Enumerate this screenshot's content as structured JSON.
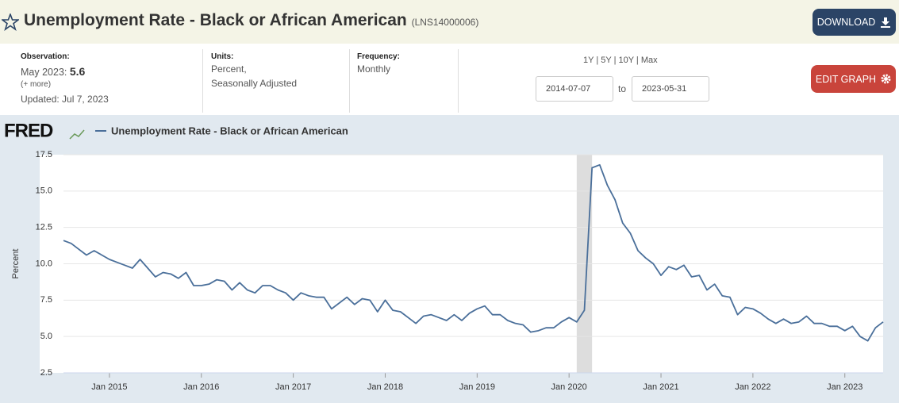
{
  "header": {
    "title": "Unemployment Rate - Black or African American",
    "series_id": "(LNS14000006)",
    "download": "DOWNLOAD"
  },
  "info": {
    "observation_label": "Observation:",
    "observation_date": "May 2023:",
    "observation_value": "5.6",
    "more": "(+ more)",
    "updated": "Updated: Jul 7, 2023",
    "units_label": "Units:",
    "units_line1": "Percent,",
    "units_line2": "Seasonally Adjusted",
    "frequency_label": "Frequency:",
    "frequency": "Monthly",
    "ranges": [
      "1Y",
      "5Y",
      "10Y",
      "Max"
    ],
    "start_date": "2014-07-07",
    "to": "to",
    "end_date": "2023-05-31",
    "edit": "EDIT GRAPH"
  },
  "logo": "FRED",
  "chart_data": {
    "type": "line",
    "ylabel": "Percent",
    "x": [
      "2014-07",
      "2014-08",
      "2014-09",
      "2014-10",
      "2014-11",
      "2014-12",
      "2015-01",
      "2015-02",
      "2015-03",
      "2015-04",
      "2015-05",
      "2015-06",
      "2015-07",
      "2015-08",
      "2015-09",
      "2015-10",
      "2015-11",
      "2015-12",
      "2016-01",
      "2016-02",
      "2016-03",
      "2016-04",
      "2016-05",
      "2016-06",
      "2016-07",
      "2016-08",
      "2016-09",
      "2016-10",
      "2016-11",
      "2016-12",
      "2017-01",
      "2017-02",
      "2017-03",
      "2017-04",
      "2017-05",
      "2017-06",
      "2017-07",
      "2017-08",
      "2017-09",
      "2017-10",
      "2017-11",
      "2017-12",
      "2018-01",
      "2018-02",
      "2018-03",
      "2018-04",
      "2018-05",
      "2018-06",
      "2018-07",
      "2018-08",
      "2018-09",
      "2018-10",
      "2018-11",
      "2018-12",
      "2019-01",
      "2019-02",
      "2019-03",
      "2019-04",
      "2019-05",
      "2019-06",
      "2019-07",
      "2019-08",
      "2019-09",
      "2019-10",
      "2019-11",
      "2019-12",
      "2020-01",
      "2020-02",
      "2020-03",
      "2020-04",
      "2020-05",
      "2020-06",
      "2020-07",
      "2020-08",
      "2020-09",
      "2020-10",
      "2020-11",
      "2020-12",
      "2021-01",
      "2021-02",
      "2021-03",
      "2021-04",
      "2021-05",
      "2021-06",
      "2021-07",
      "2021-08",
      "2021-09",
      "2021-10",
      "2021-11",
      "2021-12",
      "2022-01",
      "2022-02",
      "2022-03",
      "2022-04",
      "2022-05",
      "2022-06",
      "2022-07",
      "2022-08",
      "2022-09",
      "2022-10",
      "2022-11",
      "2022-12",
      "2023-01",
      "2023-02",
      "2023-03",
      "2023-04",
      "2023-05",
      "2023-06"
    ],
    "series": [
      {
        "name": "Unemployment Rate - Black or African American",
        "color": "#4a6f9a",
        "values": [
          11.6,
          11.4,
          11.0,
          10.6,
          10.9,
          10.6,
          10.3,
          10.1,
          9.9,
          9.7,
          10.3,
          9.7,
          9.1,
          9.4,
          9.3,
          9.0,
          9.4,
          8.5,
          8.5,
          8.6,
          8.9,
          8.8,
          8.2,
          8.7,
          8.2,
          8.0,
          8.5,
          8.5,
          8.2,
          8.0,
          7.5,
          8.0,
          7.8,
          7.7,
          7.7,
          6.9,
          7.3,
          7.7,
          7.2,
          7.6,
          7.5,
          6.7,
          7.5,
          6.8,
          6.7,
          6.3,
          5.9,
          6.4,
          6.5,
          6.3,
          6.1,
          6.5,
          6.1,
          6.6,
          6.9,
          7.1,
          6.5,
          6.5,
          6.1,
          5.9,
          5.8,
          5.3,
          5.4,
          5.6,
          5.6,
          6.0,
          6.3,
          6.0,
          6.8,
          16.6,
          16.8,
          15.4,
          14.4,
          12.8,
          12.1,
          10.9,
          10.4,
          10.0,
          9.2,
          9.8,
          9.6,
          9.9,
          9.1,
          9.2,
          8.2,
          8.6,
          7.8,
          7.7,
          6.5,
          7.0,
          6.9,
          6.6,
          6.2,
          5.9,
          6.2,
          5.9,
          6.0,
          6.4,
          5.9,
          5.9,
          5.7,
          5.7,
          5.4,
          5.7,
          5.0,
          4.7,
          5.6,
          6.0
        ]
      }
    ],
    "xlim": [
      "2014-07",
      "2023-06"
    ],
    "xticks": [
      {
        "value": "2015-01",
        "label": "Jan 2015"
      },
      {
        "value": "2016-01",
        "label": "Jan 2016"
      },
      {
        "value": "2017-01",
        "label": "Jan 2017"
      },
      {
        "value": "2018-01",
        "label": "Jan 2018"
      },
      {
        "value": "2019-01",
        "label": "Jan 2019"
      },
      {
        "value": "2020-01",
        "label": "Jan 2020"
      },
      {
        "value": "2021-01",
        "label": "Jan 2021"
      },
      {
        "value": "2022-01",
        "label": "Jan 2022"
      },
      {
        "value": "2023-01",
        "label": "Jan 2023"
      }
    ],
    "ylim": [
      2.5,
      17.5
    ],
    "yticks": [
      2.5,
      {
        "value": 5,
        "label": "5.0"
      },
      7.5,
      {
        "value": 10,
        "label": "10.0"
      },
      12.5,
      {
        "value": 15,
        "label": "15.0"
      },
      17.5
    ],
    "grid": true,
    "shaded_periods": [
      {
        "start": "2020-02",
        "end": "2020-04",
        "color": "#dddddd"
      }
    ]
  }
}
